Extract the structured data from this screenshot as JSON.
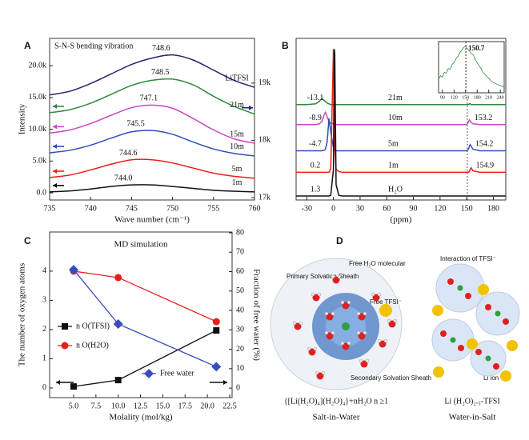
{
  "chart_data": [
    {
      "type": "line",
      "panel": "A",
      "annotation": "S-N-S bending vibration",
      "x_label": "Wave number (cm⁻¹)",
      "y_label": "Intensity",
      "x": [
        735,
        737.5,
        740,
        742.5,
        745,
        747.5,
        750,
        752.5,
        755,
        757.5,
        760
      ],
      "xlim": [
        735,
        760
      ],
      "xticks": [
        735,
        740,
        745,
        750,
        755,
        760
      ],
      "ylim": [
        -1130,
        24300
      ],
      "yticks": [
        {
          "value": 0,
          "label": "0.0"
        },
        {
          "value": 5000,
          "label": "5.0k"
        },
        {
          "value": 10000,
          "label": "10.0k"
        },
        {
          "value": 15000,
          "label": "15.0k"
        },
        {
          "value": 20000,
          "label": "20.0k"
        }
      ],
      "y2lim": [
        16958,
        19780
      ],
      "y2ticks": [
        {
          "value": 17000,
          "label": "17k"
        },
        {
          "value": 18000,
          "label": "18k"
        },
        {
          "value": 19000,
          "label": "19k"
        }
      ],
      "legend": "inline",
      "series": [
        {
          "name": "1m",
          "color": "#111111",
          "peak": {
            "value": 744,
            "label": "744.0"
          },
          "values": [
            150,
            300,
            600,
            1000,
            1250,
            1250,
            1000,
            700,
            400,
            250,
            150
          ]
        },
        {
          "name": "5m",
          "color": "#e8201c",
          "peak": 744.6,
          "values": [
            2400,
            2800,
            3600,
            4500,
            5200,
            5200,
            4700,
            3900,
            3100,
            2600,
            2300
          ]
        },
        {
          "name": "10m",
          "color": "#2f4fb5",
          "peak": 745.5,
          "values": [
            6300,
            6700,
            7500,
            8600,
            9600,
            9800,
            9200,
            8000,
            6900,
            6200,
            5800
          ]
        },
        {
          "name": "15m",
          "color": "#c847c4",
          "peak": 747.1,
          "values": [
            9400,
            9900,
            10900,
            12200,
            13400,
            13800,
            13300,
            11700,
            9900,
            8500,
            7800
          ]
        },
        {
          "name": "21m",
          "color": "#2e8b3a",
          "peak": 748.5,
          "values": [
            12600,
            13100,
            14100,
            15500,
            16900,
            17700,
            17900,
            17000,
            15200,
            13600,
            12400
          ]
        },
        {
          "name": "LiTFSI",
          "color": "#26246e",
          "peak": 748.6,
          "values": [
            15400,
            16000,
            17200,
            18700,
            20200,
            21200,
            21700,
            20900,
            19300,
            17700,
            16600
          ]
        }
      ]
    },
    {
      "type": "line",
      "panel": "B",
      "x_label": "(ppm)",
      "x": [
        -42,
        -30,
        -20,
        -16,
        -13,
        -10,
        -9,
        -7,
        -5,
        -3,
        0,
        0.5,
        1,
        1.5,
        3,
        6,
        10,
        30,
        60,
        90,
        120,
        140,
        150,
        152,
        153,
        154,
        155,
        157,
        165,
        194
      ],
      "xlim": [
        -42,
        194
      ],
      "xticks": [
        -30,
        0,
        30,
        60,
        90,
        120,
        150,
        180
      ],
      "ylim": [
        0,
        105
      ],
      "legend": "inline",
      "series": [
        {
          "name": "21m",
          "color": "#2e8b3a",
          "shift": -13.1,
          "values": [
            62,
            62,
            62.5,
            64,
            66,
            64.5,
            64,
            63,
            62.5,
            62,
            62,
            62,
            62,
            62,
            62,
            62,
            62,
            62,
            62,
            62,
            62,
            62,
            62,
            62,
            62.5,
            62.5,
            62,
            62,
            62,
            62
          ]
        },
        {
          "name": "10m",
          "color": "#c847c4",
          "shift": -8.9,
          "small_peak": 153.2,
          "values": [
            49,
            49,
            49,
            49.5,
            51,
            56,
            57,
            54,
            51,
            50,
            49.5,
            49,
            49,
            49,
            49,
            49,
            49,
            49,
            49,
            49,
            49,
            49,
            49,
            51,
            52,
            51.5,
            50.5,
            49.5,
            49,
            49
          ]
        },
        {
          "name": "5m",
          "color": "#2f4fb5",
          "shift": -4.7,
          "small_peak": 154.2,
          "values": [
            32,
            32,
            32,
            32,
            32,
            32.5,
            33,
            38,
            53,
            44,
            34,
            33,
            32.5,
            32,
            32,
            32,
            32,
            32,
            32,
            32,
            32,
            32,
            32,
            33,
            35,
            36,
            35,
            33,
            32,
            32
          ]
        },
        {
          "name": "1m",
          "color": "#e8201c",
          "shift": 0.2,
          "small_peak": 154.9,
          "values": [
            18,
            18,
            18,
            18,
            18,
            18,
            18,
            18,
            18,
            20,
            98,
            95,
            60,
            35,
            20,
            18.5,
            18,
            18,
            18,
            18,
            18,
            18,
            18,
            18,
            18.5,
            20,
            21,
            19,
            18,
            18
          ]
        },
        {
          "name": "H₂O",
          "color": "#111111",
          "shift": 1.3,
          "values": [
            2.6,
            2.6,
            2.6,
            2.6,
            2.6,
            2.6,
            2.6,
            2.6,
            2.6,
            3,
            20,
            60,
            98,
            95,
            10,
            3,
            2.6,
            2.6,
            2.6,
            2.6,
            2.6,
            2.6,
            2.6,
            2.6,
            2.6,
            2.6,
            2.6,
            2.6,
            2.6,
            2.6
          ]
        }
      ]
    },
    {
      "type": "line",
      "x": [
        80,
        85,
        90,
        95,
        100,
        105,
        110,
        115,
        120,
        125,
        130,
        135,
        140,
        145,
        150,
        155,
        160,
        165,
        170,
        175,
        180,
        185,
        190,
        195,
        200,
        205,
        210,
        215,
        220,
        225,
        230,
        235,
        240,
        245,
        250
      ],
      "xlim": [
        80,
        250
      ],
      "xticks": [
        90,
        120,
        150,
        180,
        210,
        240
      ],
      "ylim": [
        0,
        1.05
      ],
      "peak": 150.7,
      "series": [
        {
          "color": "#2e8b3a",
          "values": [
            0.28,
            0.35,
            0.32,
            0.42,
            0.4,
            0.5,
            0.48,
            0.58,
            0.62,
            0.7,
            0.75,
            0.82,
            0.88,
            0.93,
            0.95,
            0.9,
            0.86,
            0.8,
            0.78,
            0.68,
            0.62,
            0.55,
            0.5,
            0.42,
            0.38,
            0.33,
            0.3,
            0.25,
            0.22,
            0.2,
            0.18,
            0.16,
            0.15,
            0.13,
            0.12
          ]
        }
      ]
    },
    {
      "type": "line",
      "panel": "C",
      "title": "MD simulation",
      "x_label": "Molality (mol/kg)",
      "y_label": "The number of oxygen atoms",
      "y2_label": "Fraction of free water (%)",
      "x": [
        5,
        10,
        21
      ],
      "xlim": [
        2.31,
        22.77
      ],
      "xticks": [
        {
          "value": 5,
          "label": "5.0"
        },
        7.5,
        {
          "value": 10,
          "label": "10.0"
        },
        12.5,
        {
          "value": 15,
          "label": "15.0"
        },
        17.5,
        {
          "value": 20,
          "label": "20.0"
        },
        22.5
      ],
      "ylim": [
        -0.33,
        5.34
      ],
      "yticks": [
        0,
        1,
        2,
        3,
        4
      ],
      "y2lim": [
        -4.9,
        80.4
      ],
      "y2ticks": [
        0,
        10,
        20,
        30,
        40,
        50,
        60,
        70,
        80
      ],
      "legend": "lower left",
      "series": [
        {
          "name": "n O(TFSI)",
          "color": "#111111",
          "marker": "square",
          "values": [
            0.05,
            0.27,
            1.97
          ]
        },
        {
          "name": "n O(H2O)",
          "color": "#e8201c",
          "marker": "circle",
          "values": [
            4.0,
            3.78,
            2.27
          ]
        },
        {
          "name": "Free water",
          "color": "#3b4bbf",
          "marker": "diamond",
          "axis": "y2",
          "values": [
            61,
            33,
            11
          ]
        }
      ]
    }
  ],
  "diagram": {
    "panel": "D",
    "primary": "Primary  Solvation Sheath",
    "free_water": "Free H₂O molecular",
    "free_tfsi": "Free TFSI⁻",
    "secondary": "Secondary Solvation Sheath",
    "formula_left": "{[Li(H₂O)₄](H₂O)₄}+nH₂O n ≥1",
    "label_left": "Salt-in-Water",
    "interaction": "Interaction of TFSI⁻",
    "li_ion": "Li ion",
    "formula_right": "Li (H₂O)₂.₅-TFSI",
    "label_right": "Water-in-Salt"
  }
}
